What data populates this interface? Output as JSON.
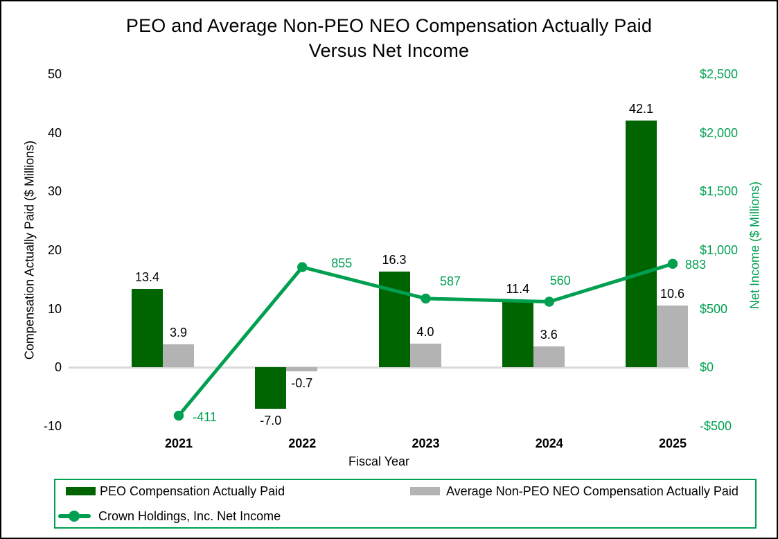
{
  "title": {
    "line1": "PEO and Average Non-PEO NEO Compensation Actually Paid",
    "line2": "Versus Net Income"
  },
  "chart_data": {
    "type": "combo-bar-line",
    "title": "PEO and Average Non-PEO NEO Compensation Actually Paid Versus Net Income",
    "categories": [
      "2021",
      "2022",
      "2023",
      "2024",
      "2025"
    ],
    "series": [
      {
        "name": "PEO Compensation Actually Paid",
        "type": "bar",
        "axis": "left",
        "color": "#006400",
        "values": [
          13.4,
          -7.0,
          16.3,
          11.4,
          42.1
        ],
        "labels": [
          "13.4",
          "-7.0",
          "16.3",
          "11.4",
          "42.1"
        ]
      },
      {
        "name": "Average Non-PEO NEO Compensation Actually Paid",
        "type": "bar",
        "axis": "left",
        "color": "#b3b3b3",
        "values": [
          3.9,
          -0.7,
          4.0,
          3.6,
          10.6
        ],
        "labels": [
          "3.9",
          "-0.7",
          "4.0",
          "3.6",
          "10.6"
        ]
      },
      {
        "name": "Crown Holdings, Inc. Net Income",
        "type": "line",
        "axis": "right",
        "color": "#00A050",
        "values": [
          -411,
          855,
          587,
          560,
          883
        ],
        "labels": [
          "-411",
          "855",
          "587",
          "560",
          "883"
        ]
      }
    ],
    "left_axis": {
      "title": "Compensation Actually Paid ($ Millions)",
      "range": [
        -10,
        50
      ],
      "tick_step": 10,
      "ticks": [
        "50",
        "40",
        "30",
        "20",
        "10",
        "0",
        "-10"
      ]
    },
    "right_axis": {
      "title": "Net Income ($ Millions)",
      "range": [
        -500,
        2500
      ],
      "tick_step": 500,
      "ticks": [
        "$2,500",
        "$2,000",
        "$1,500",
        "$1,000",
        "$500",
        "$0",
        "-$500"
      ]
    },
    "x_axis": {
      "title": "Fiscal Year"
    },
    "grid": "zero-line-only",
    "legend_position": "bottom"
  },
  "colors": {
    "bar_green": "#006400",
    "bar_gray": "#b3b3b3",
    "line_green": "#00A050",
    "zero_line": "#d9d9d9"
  }
}
